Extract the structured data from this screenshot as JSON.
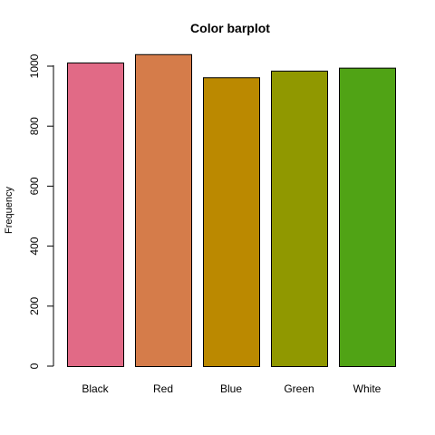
{
  "chart_data": {
    "type": "bar",
    "title": "Color barplot",
    "xlabel": "",
    "ylabel": "Frequency",
    "categories": [
      "Black",
      "Red",
      "Blue",
      "Green",
      "White"
    ],
    "values": [
      1012,
      1040,
      963,
      985,
      995
    ],
    "colors": [
      "#E16A86",
      "#D57C4A",
      "#BB8900",
      "#909800",
      "#50A315"
    ],
    "yticks": [
      0,
      200,
      400,
      600,
      800,
      1000
    ],
    "ylim": [
      0,
      1040
    ],
    "grid": false,
    "legend": "none"
  }
}
